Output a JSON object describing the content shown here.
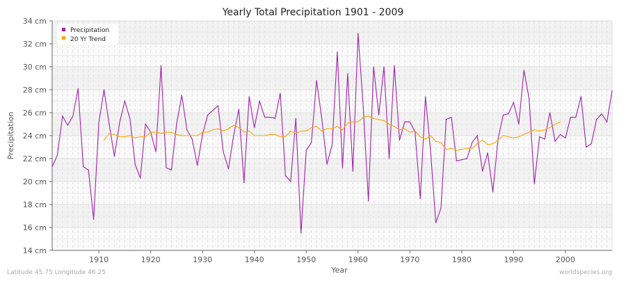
{
  "chart_data": {
    "type": "line",
    "title": "Yearly Total Precipitation 1901 - 2009",
    "xlabel": "Year",
    "ylabel": "Precipitation",
    "xlim": [
      1901,
      2009
    ],
    "ylim": [
      14,
      34
    ],
    "y_unit": "cm",
    "x_ticks": [
      1910,
      1920,
      1930,
      1940,
      1950,
      1960,
      1970,
      1980,
      1990,
      2000
    ],
    "y_ticks": [
      "14 cm",
      "16 cm",
      "18 cm",
      "20 cm",
      "22 cm",
      "24 cm",
      "26 cm",
      "28 cm",
      "30 cm",
      "32 cm",
      "34 cm"
    ],
    "grid": true,
    "legend_position": "top-left",
    "series": [
      {
        "name": "Precipitation",
        "color": "#a020a8",
        "x_start": 1901,
        "values": [
          21.3,
          22.3,
          25.7,
          24.9,
          25.7,
          28.1,
          21.3,
          21.0,
          16.7,
          25.1,
          28.0,
          25.0,
          22.2,
          25.1,
          27.0,
          25.5,
          21.5,
          20.3,
          25.0,
          24.3,
          22.6,
          30.1,
          21.2,
          21.0,
          25.0,
          27.5,
          24.5,
          23.7,
          21.4,
          24.1,
          25.8,
          26.2,
          26.6,
          22.6,
          21.1,
          24.0,
          26.3,
          19.9,
          27.4,
          24.7,
          27.0,
          25.6,
          25.6,
          25.5,
          27.7,
          20.5,
          20.0,
          25.5,
          15.5,
          22.7,
          23.4,
          28.8,
          25.5,
          21.5,
          23.2,
          31.3,
          21.2,
          29.4,
          20.9,
          32.9,
          26.5,
          18.3,
          30.0,
          25.8,
          30.0,
          22.0,
          30.1,
          23.6,
          25.2,
          25.2,
          24.3,
          18.5,
          27.4,
          22.6,
          16.4,
          17.7,
          25.4,
          25.6,
          21.8,
          21.9,
          22.0,
          23.4,
          24.0,
          20.9,
          22.5,
          19.1,
          23.7,
          25.8,
          25.9,
          26.9,
          25.0,
          29.7,
          27.2,
          19.8,
          23.9,
          23.7,
          26.0,
          23.5,
          24.1,
          23.8,
          25.6,
          25.6,
          27.4,
          23.0,
          23.3,
          25.4,
          25.9,
          25.2,
          27.9
        ]
      },
      {
        "name": "20 Yr Trend",
        "color": "#ffa500",
        "x_start": 1911,
        "values": [
          23.6,
          24.2,
          24.1,
          23.9,
          23.9,
          24.0,
          23.8,
          23.9,
          23.9,
          24.3,
          24.3,
          24.2,
          24.3,
          24.3,
          24.1,
          24.0,
          24.0,
          24.0,
          24.0,
          24.3,
          24.3,
          24.5,
          24.6,
          24.4,
          24.6,
          24.9,
          24.7,
          24.3,
          24.4,
          24.0,
          24.0,
          24.0,
          24.1,
          24.1,
          23.9,
          23.9,
          24.4,
          24.2,
          24.4,
          24.4,
          24.7,
          24.8,
          24.4,
          24.6,
          24.6,
          24.8,
          24.5,
          25.1,
          25.2,
          25.2,
          25.6,
          25.7,
          25.5,
          25.4,
          25.3,
          25.0,
          24.8,
          24.5,
          24.6,
          24.3,
          24.4,
          23.9,
          23.7,
          24.0,
          23.5,
          23.4,
          22.8,
          22.9,
          22.7,
          22.8,
          22.9,
          22.9,
          23.3,
          23.6,
          23.2,
          23.3,
          23.6,
          24.0,
          23.9,
          23.8,
          23.9,
          24.1,
          24.3,
          24.5,
          24.4,
          24.5,
          24.7,
          25.0,
          25.2
        ]
      }
    ]
  },
  "footer": {
    "location": "Latitude 45.75 Longitude 46.25",
    "source": "worldspecies.org"
  }
}
